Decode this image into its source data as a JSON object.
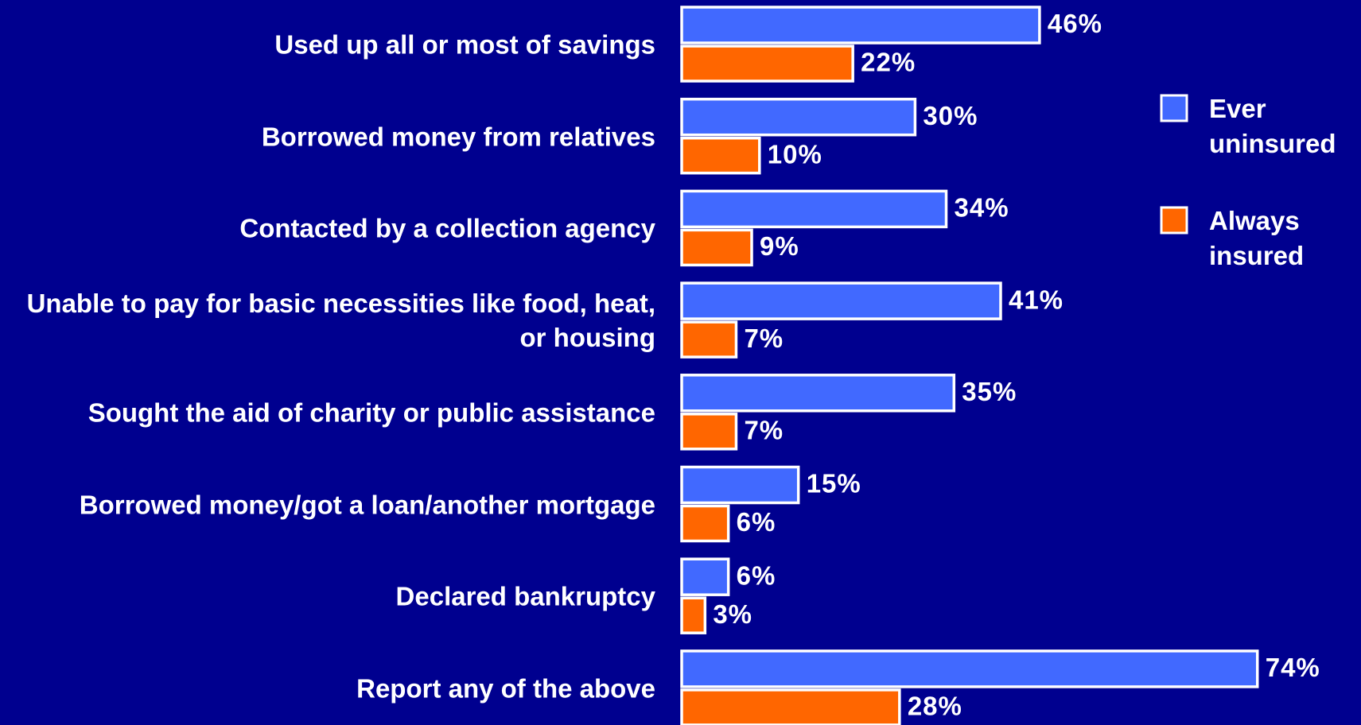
{
  "chart_data": {
    "type": "bar",
    "orientation": "horizontal",
    "categories": [
      "Used up all or most of savings",
      "Borrowed money from relatives",
      "Contacted by a collection agency",
      "Unable to pay for basic necessities like food, heat, or housing",
      "Sought the aid of charity or public assistance",
      "Borrowed money/got a loan/another mortgage",
      "Declared bankruptcy",
      "Report any of the above"
    ],
    "series": [
      {
        "name": "Ever uninsured",
        "color": "#4169ff",
        "values": [
          46,
          30,
          34,
          41,
          35,
          15,
          6,
          74
        ],
        "value_labels": [
          "46%",
          "30%",
          "34%",
          "41%",
          "35%",
          "15%",
          "6%",
          "74%"
        ]
      },
      {
        "name": "Always insured",
        "color": "#ff6600",
        "values": [
          22,
          10,
          9,
          7,
          7,
          6,
          3,
          28
        ],
        "value_labels": [
          "22%",
          "10%",
          "9%",
          "7%",
          "7%",
          "6%",
          "3%",
          "28%"
        ]
      }
    ],
    "legend": "right"
  }
}
